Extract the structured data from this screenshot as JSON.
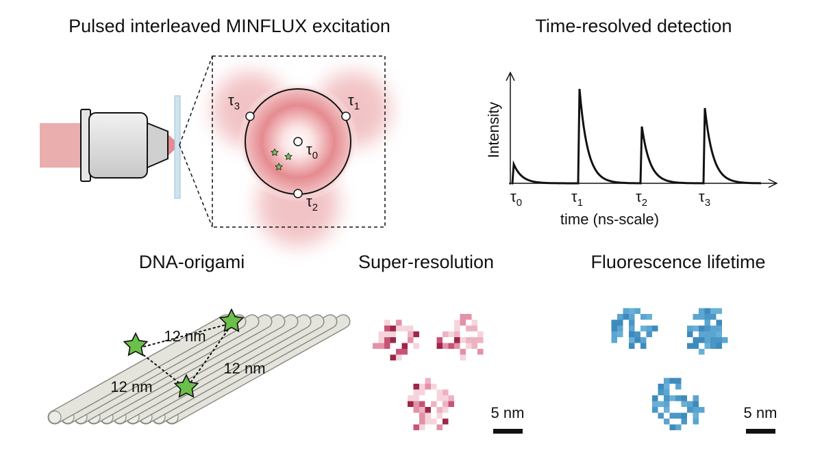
{
  "titles": {
    "excitation": "Pulsed interleaved MINFLUX excitation",
    "detection": "Time-resolved detection",
    "origami": "DNA-origami",
    "super_resolution": "Super-resolution",
    "lifetime": "Fluorescence lifetime"
  },
  "excitation_labels": [
    {
      "symbol": "τ",
      "index": "0"
    },
    {
      "symbol": "τ",
      "index": "1"
    },
    {
      "symbol": "τ",
      "index": "2"
    },
    {
      "symbol": "τ",
      "index": "3"
    }
  ],
  "detection": {
    "y_label": "Intensity",
    "x_label": "time (ns-scale)",
    "ticks": [
      {
        "symbol": "τ",
        "index": "0"
      },
      {
        "symbol": "τ",
        "index": "1"
      },
      {
        "symbol": "τ",
        "index": "2"
      },
      {
        "symbol": "τ",
        "index": "3"
      }
    ]
  },
  "origami": {
    "distances": [
      "12 nm",
      "12 nm",
      "12 nm"
    ]
  },
  "super_resolution": {
    "scale_bar": "5 nm"
  },
  "lifetime": {
    "scale_bar": "5 nm"
  }
}
